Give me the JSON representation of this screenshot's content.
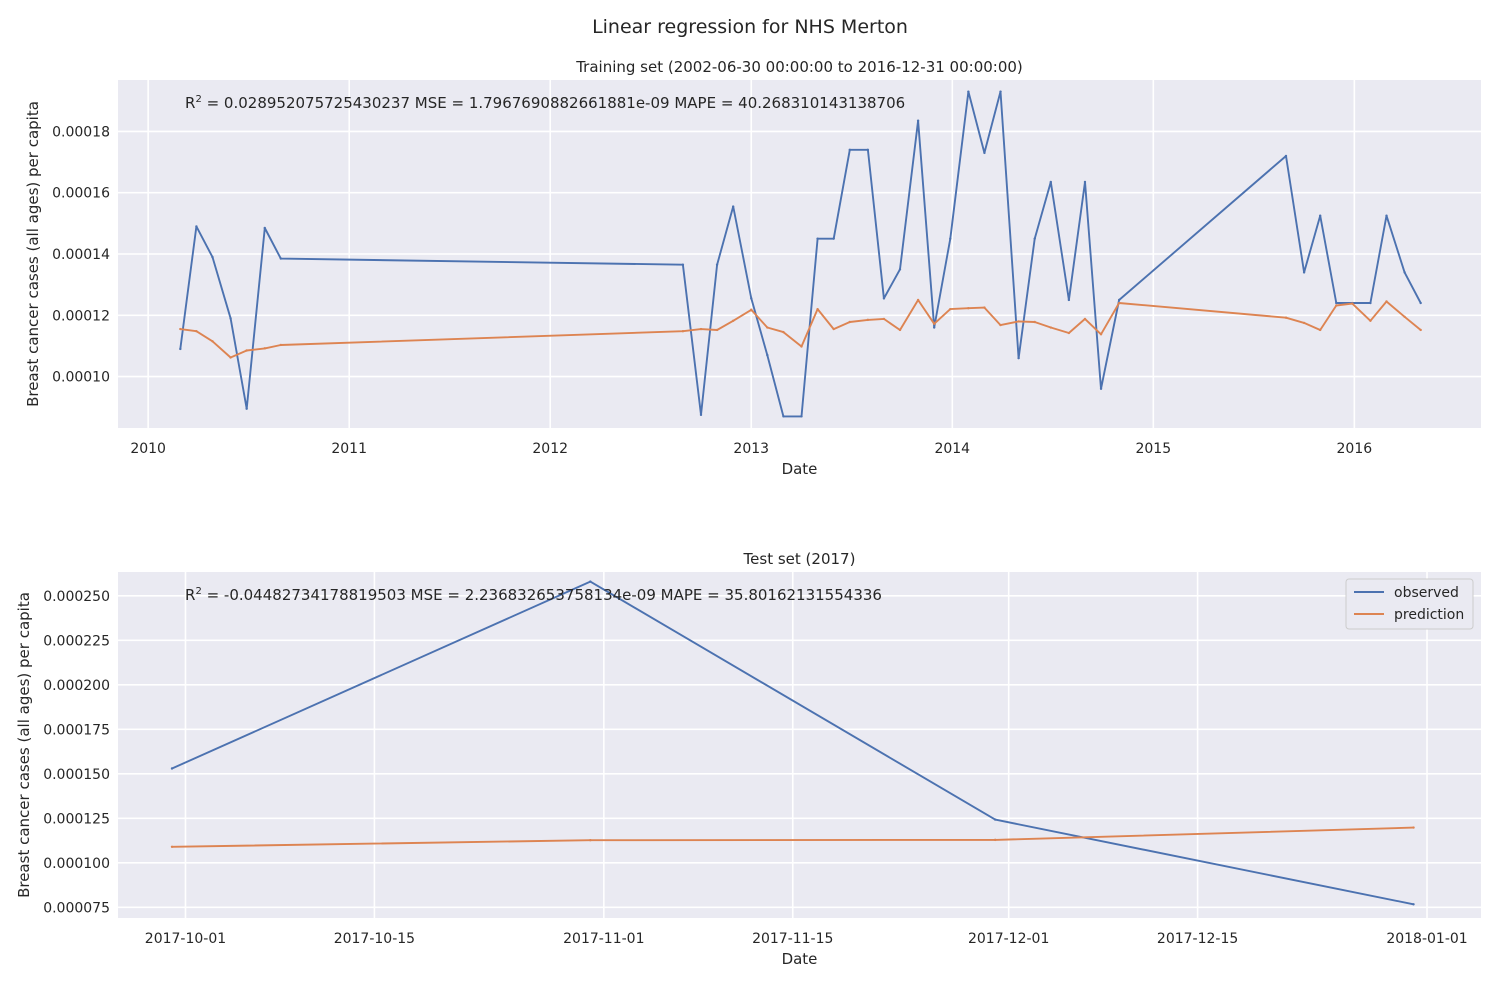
{
  "figure": {
    "suptitle": "Linear regression for NHS Merton"
  },
  "colors": {
    "background": "#eaeaf2",
    "grid": "#ffffff",
    "observed": "#4c72b0",
    "prediction": "#dd8452",
    "text": "#262626"
  },
  "chart_data": [
    {
      "type": "line",
      "title": "Training set (2002-06-30 00:00:00 to 2016-12-31 00:00:00)",
      "xlabel": "Date",
      "ylabel": "Breast cancer cases (all ages) per capita",
      "annotation": {
        "r2_prefix": "R",
        "r2_sup": "2",
        "rest": " = 0.028952075725430237  MSE = 1.7967690882661881e-09  MAPE = 40.268310143138706"
      },
      "xlim": [
        2009.85,
        2016.63
      ],
      "ylim": [
        8.32e-05,
        0.0001968
      ],
      "x_ticks": [
        2010,
        2011,
        2012,
        2013,
        2014,
        2015,
        2016
      ],
      "x_tick_labels": [
        "2010",
        "2011",
        "2012",
        "2013",
        "2014",
        "2015",
        "2016"
      ],
      "y_ticks": [
        0.0001,
        0.00012,
        0.00014,
        0.00016,
        0.00018
      ],
      "y_tick_labels": [
        "0.00010",
        "0.00012",
        "0.00014",
        "0.00016",
        "0.00018"
      ],
      "grid": true,
      "legend": "none",
      "x": [
        2010.16,
        2010.24,
        2010.32,
        2010.41,
        2010.49,
        2010.58,
        2010.66,
        2012.66,
        2012.75,
        2012.83,
        2012.91,
        2013.0,
        2013.08,
        2013.16,
        2013.25,
        2013.33,
        2013.41,
        2013.49,
        2013.58,
        2013.66,
        2013.74,
        2013.83,
        2013.91,
        2013.99,
        2014.08,
        2014.16,
        2014.24,
        2014.33,
        2014.41,
        2014.49,
        2014.58,
        2014.66,
        2014.74,
        2014.83,
        2015.66,
        2015.75,
        2015.83,
        2015.91,
        2015.99,
        2016.08,
        2016.16,
        2016.25,
        2016.33
      ],
      "series": [
        {
          "name": "observed",
          "values": [
            0.000109,
            0.000149,
            0.000139,
            0.000119,
            8.95e-05,
            0.0001485,
            0.0001385,
            0.0001365,
            8.75e-05,
            0.0001365,
            0.0001555,
            0.0001255,
            0.000107,
            8.7e-05,
            8.7e-05,
            0.000145,
            0.000145,
            0.000174,
            0.000174,
            0.0001255,
            0.000135,
            0.0001835,
            0.000116,
            0.000145,
            0.000193,
            0.000173,
            0.000193,
            0.000106,
            0.000145,
            0.0001635,
            0.000125,
            0.0001635,
            9.6e-05,
            0.000125,
            0.000172,
            0.000134,
            0.0001525,
            0.000124,
            0.000124,
            0.000124,
            0.0001525,
            0.000134,
            0.000124
          ]
        },
        {
          "name": "prediction",
          "values": [
            0.0001155,
            0.0001148,
            0.0001115,
            0.0001062,
            0.0001085,
            0.0001092,
            0.0001103,
            0.0001148,
            0.0001155,
            0.0001152,
            0.0001182,
            0.0001218,
            0.000116,
            0.0001145,
            0.0001098,
            0.000122,
            0.0001155,
            0.0001178,
            0.0001185,
            0.0001188,
            0.0001152,
            0.000125,
            0.0001172,
            0.000122,
            0.0001223,
            0.0001225,
            0.0001168,
            0.000118,
            0.0001178,
            0.000116,
            0.0001142,
            0.0001188,
            0.0001138,
            0.000124,
            0.0001192,
            0.0001175,
            0.0001152,
            0.0001232,
            0.0001238,
            0.0001182,
            0.0001245,
            0.0001195,
            0.0001152
          ]
        }
      ]
    },
    {
      "type": "line",
      "title": "Test set (2017)",
      "xlabel": "Date",
      "ylabel": "Breast cancer cases (all ages) per capita",
      "annotation": {
        "r2_prefix": "R",
        "r2_sup": "2",
        "rest": " = -0.04482734178819503  MSE = 2.236832653758134e-09  MAPE = 35.80162131554336"
      },
      "xlim": [
        "2017-09-26",
        "2018-01-05"
      ],
      "ylim": [
        6.9e-05,
        0.0002634
      ],
      "x_ticks": [
        "2017-10-01",
        "2017-10-15",
        "2017-11-01",
        "2017-11-15",
        "2017-12-01",
        "2017-12-15",
        "2018-01-01"
      ],
      "x_tick_labels": [
        "2017-10-01",
        "2017-10-15",
        "2017-11-01",
        "2017-11-15",
        "2017-12-01",
        "2017-12-15",
        "2018-01-01"
      ],
      "y_ticks": [
        7.5e-05,
        0.0001,
        0.000125,
        0.00015,
        0.000175,
        0.0002,
        0.000225,
        0.00025
      ],
      "y_tick_labels": [
        "0.000075",
        "0.000100",
        "0.000125",
        "0.000150",
        "0.000175",
        "0.000200",
        "0.000225",
        "0.000250"
      ],
      "grid": true,
      "legend": "top-right",
      "legend_entries": [
        "observed",
        "prediction"
      ],
      "x": [
        "2017-09-30",
        "2017-10-31",
        "2017-11-30",
        "2017-12-31"
      ],
      "series": [
        {
          "name": "observed",
          "values": [
            0.000153,
            0.000258,
            0.0001243,
            7.67e-05
          ]
        },
        {
          "name": "prediction",
          "values": [
            0.000109,
            0.0001127,
            0.0001129,
            0.0001198
          ]
        }
      ]
    }
  ]
}
